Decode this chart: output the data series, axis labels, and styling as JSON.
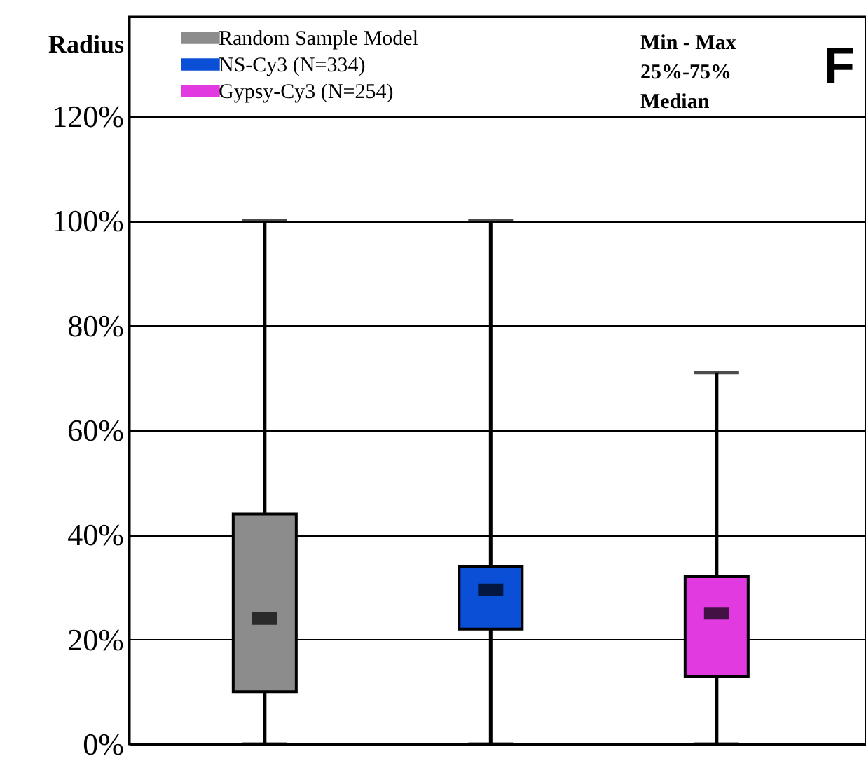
{
  "chart_data": {
    "type": "box",
    "ylabel": "Radius",
    "categories": [
      null,
      null,
      null
    ],
    "series": [
      {
        "name": "Random Sample Model",
        "color": "#8c8c8c",
        "boxes": [
          {
            "low": 0,
            "q1": 10,
            "median": 24,
            "q3": 44,
            "high": 100
          },
          null,
          null
        ]
      },
      {
        "name": "NS-Cy3 (N=334)",
        "color": "#0a4fd6",
        "boxes": [
          null,
          {
            "low": 0,
            "q1": 22,
            "median": 29.5,
            "q3": 34,
            "high": 100
          },
          null
        ]
      },
      {
        "name": "Gypsy-Cy3 (N=254)",
        "color": "#e03ae0",
        "boxes": [
          null,
          null,
          {
            "low": 0,
            "q1": 13,
            "median": 25,
            "q3": 32,
            "high": 71
          }
        ]
      }
    ],
    "ylim": [
      0,
      139
    ],
    "yticks": [
      {
        "value": 0,
        "label": "0%"
      },
      {
        "value": 20,
        "label": "20%"
      },
      {
        "value": 40,
        "label": "40%"
      },
      {
        "value": 60,
        "label": "60%"
      },
      {
        "value": 80,
        "label": "80%"
      },
      {
        "value": 100,
        "label": "100%"
      },
      {
        "value": 120,
        "label": "120%"
      }
    ],
    "grid": "y",
    "legend": "top left",
    "annotations": [
      "Min - Max",
      "25%-75%",
      "Median",
      "F"
    ]
  }
}
